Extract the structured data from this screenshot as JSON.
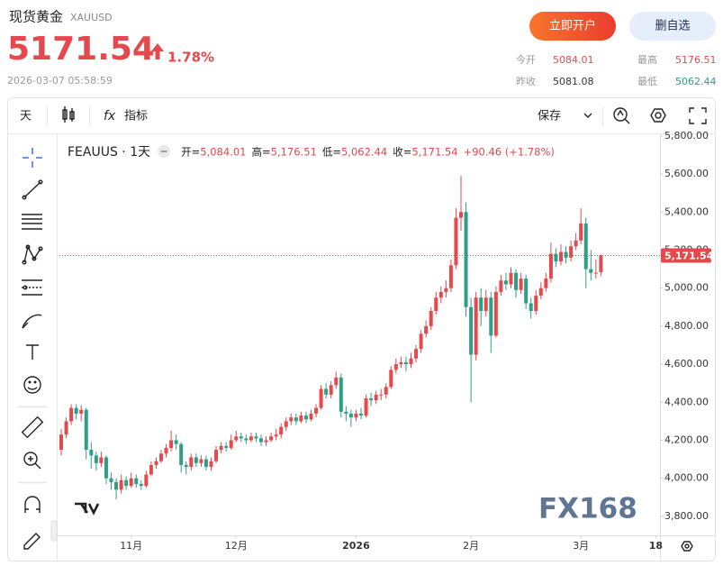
{
  "header": {
    "title": "现货黄金",
    "symbol": "XAUUSD",
    "price": 5171.54,
    "change": "1.78%",
    "datetime": "2026-03-07 05:58:59",
    "buttons": [
      "立即开户",
      "删自选"
    ],
    "stats": [
      {
        "label": "今开",
        "value": 5084.01
      },
      {
        "label": "最高",
        "value": 5176.51
      },
      {
        "label": "昨收",
        "value": 5081.08
      },
      {
        "label": "最低",
        "value": 5062.44
      }
    ]
  },
  "toolbar": {
    "interval": "天",
    "fx": "fx",
    "indicators": "指标",
    "save": "保存"
  },
  "watermark": "FX168",
  "chart_data": {
    "type": "candlestick",
    "legend": {
      "symbol": "FEAUUS · 1天",
      "items": [
        {
          "label": "开=",
          "value": "5,084.01"
        },
        {
          "label": "高=",
          "value": "5,176.51"
        },
        {
          "label": "低=",
          "value": "5,062.44"
        },
        {
          "label": "收=",
          "value": "5,171.54"
        }
      ],
      "change": "+90.46 (+1.78%)"
    },
    "up_color": "#e5484d",
    "down_color": "#2f9e86",
    "last_label": "5,171.54",
    "ylim": [
      3700,
      5804
    ],
    "yticks": [
      {
        "value": 3800,
        "label": "3,800.00"
      },
      {
        "value": 4000,
        "label": "4,000.00"
      },
      {
        "value": 4200,
        "label": "4,200.00"
      },
      {
        "value": 4400,
        "label": "4,400.00"
      },
      {
        "value": 4600,
        "label": "4,600.00"
      },
      {
        "value": 4800,
        "label": "4,800.00"
      },
      {
        "value": 5000,
        "label": "5,000.00"
      },
      {
        "value": 5200,
        "label": "5,200.00"
      },
      {
        "value": 5400,
        "label": "5,400.00"
      },
      {
        "value": 5600,
        "label": "5,600.00"
      },
      {
        "value": 5800,
        "label": "5,800.00"
      }
    ],
    "xlim": [
      -0.36,
      119.82
    ],
    "xticks": [
      {
        "value": 14,
        "label": "11月"
      },
      {
        "value": 35,
        "label": "12月"
      },
      {
        "value": 59,
        "label": "2026"
      },
      {
        "value": 82,
        "label": "2月"
      },
      {
        "value": 104,
        "label": "3月"
      },
      {
        "value": 119,
        "label": "18"
      }
    ],
    "open": [
      4150,
      4230,
      4300,
      4370,
      4340,
      4360,
      4150,
      4120,
      4080,
      4110,
      4000,
      3980,
      3940,
      3990,
      3960,
      4000,
      3970,
      3960,
      4020,
      4070,
      4090,
      4130,
      4160,
      4200,
      4180,
      4070,
      4060,
      4110,
      4080,
      4100,
      4060,
      4090,
      4150,
      4170,
      4160,
      4200,
      4220,
      4210,
      4200,
      4220,
      4210,
      4190,
      4200,
      4220,
      4230,
      4270,
      4300,
      4320,
      4300,
      4330,
      4310,
      4340,
      4370,
      4470,
      4440,
      4490,
      4530,
      4350,
      4340,
      4320,
      4340,
      4330,
      4420,
      4410,
      4440,
      4440,
      4480,
      4570,
      4600,
      4610,
      4600,
      4630,
      4680,
      4760,
      4800,
      4880,
      4950,
      4980,
      5000,
      5120,
      5370,
      5400,
      4900,
      4650,
      4950,
      4880,
      4950,
      4750,
      4980,
      5040,
      5020,
      5080,
      4990,
      5050,
      4920,
      4880,
      4960,
      5000,
      5050,
      5180,
      5140,
      5190,
      5160,
      5220,
      5250,
      5340,
      5100,
      5080,
      5084.01
    ],
    "high": [
      4260,
      4320,
      4390,
      4390,
      4385,
      4370,
      4190,
      4140,
      4140,
      4120,
      4030,
      4000,
      4020,
      4010,
      4030,
      4020,
      3990,
      4040,
      4090,
      4110,
      4150,
      4180,
      4250,
      4230,
      4190,
      4090,
      4130,
      4130,
      4120,
      4120,
      4110,
      4170,
      4190,
      4190,
      4230,
      4250,
      4240,
      4230,
      4240,
      4240,
      4230,
      4220,
      4240,
      4260,
      4290,
      4320,
      4340,
      4340,
      4350,
      4350,
      4360,
      4390,
      4490,
      4500,
      4510,
      4560,
      4550,
      4380,
      4360,
      4360,
      4370,
      4440,
      4450,
      4460,
      4470,
      4500,
      4590,
      4630,
      4640,
      4640,
      4660,
      4700,
      4780,
      4830,
      4900,
      4980,
      5010,
      5040,
      5150,
      5420,
      5590,
      5450,
      4950,
      4980,
      5000,
      4990,
      4980,
      5010,
      5070,
      5080,
      5110,
      5100,
      5080,
      5070,
      4950,
      4990,
      5030,
      5080,
      5240,
      5210,
      5230,
      5220,
      5250,
      5290,
      5420,
      5370,
      5200,
      5150,
      5176.51
    ],
    "low": [
      4120,
      4210,
      4280,
      4310,
      4300,
      4100,
      4050,
      4040,
      4060,
      3970,
      3940,
      3890,
      3920,
      3940,
      3950,
      3950,
      3940,
      3950,
      4010,
      4050,
      4080,
      4110,
      4140,
      4150,
      4030,
      4020,
      4040,
      4060,
      4060,
      4040,
      4040,
      4080,
      4130,
      4140,
      4150,
      4190,
      4190,
      4180,
      4190,
      4190,
      4170,
      4170,
      4190,
      4200,
      4210,
      4250,
      4280,
      4280,
      4290,
      4290,
      4300,
      4320,
      4360,
      4420,
      4420,
      4470,
      4320,
      4300,
      4270,
      4300,
      4310,
      4320,
      4380,
      4390,
      4410,
      4420,
      4470,
      4550,
      4580,
      4560,
      4580,
      4610,
      4660,
      4740,
      4780,
      4860,
      4920,
      4950,
      4980,
      5100,
      5300,
      4850,
      4400,
      4620,
      4800,
      4850,
      4660,
      4740,
      4960,
      4990,
      5000,
      4950,
      4970,
      4890,
      4840,
      4860,
      4940,
      4980,
      5030,
      5110,
      5120,
      5130,
      5140,
      5200,
      5230,
      5000,
      5040,
      5050,
      5062.44
    ],
    "close": [
      4230,
      4300,
      4370,
      4340,
      4360,
      4150,
      4120,
      4080,
      4110,
      4000,
      3980,
      3940,
      3990,
      3960,
      4000,
      3970,
      3960,
      4020,
      4070,
      4090,
      4130,
      4160,
      4200,
      4180,
      4070,
      4060,
      4110,
      4080,
      4100,
      4060,
      4090,
      4150,
      4170,
      4160,
      4200,
      4220,
      4210,
      4200,
      4220,
      4210,
      4190,
      4200,
      4220,
      4230,
      4270,
      4300,
      4320,
      4300,
      4330,
      4310,
      4340,
      4370,
      4470,
      4440,
      4490,
      4530,
      4350,
      4340,
      4320,
      4340,
      4330,
      4420,
      4410,
      4440,
      4440,
      4480,
      4570,
      4600,
      4610,
      4600,
      4630,
      4680,
      4760,
      4800,
      4880,
      4950,
      4980,
      5000,
      5120,
      5370,
      5400,
      4900,
      4650,
      4950,
      4880,
      4950,
      4750,
      4980,
      5040,
      5020,
      5080,
      4990,
      5050,
      4920,
      4880,
      4960,
      5000,
      5050,
      5180,
      5140,
      5190,
      5160,
      5220,
      5250,
      5340,
      5100,
      5080,
      5081.08,
      5171.54
    ]
  }
}
